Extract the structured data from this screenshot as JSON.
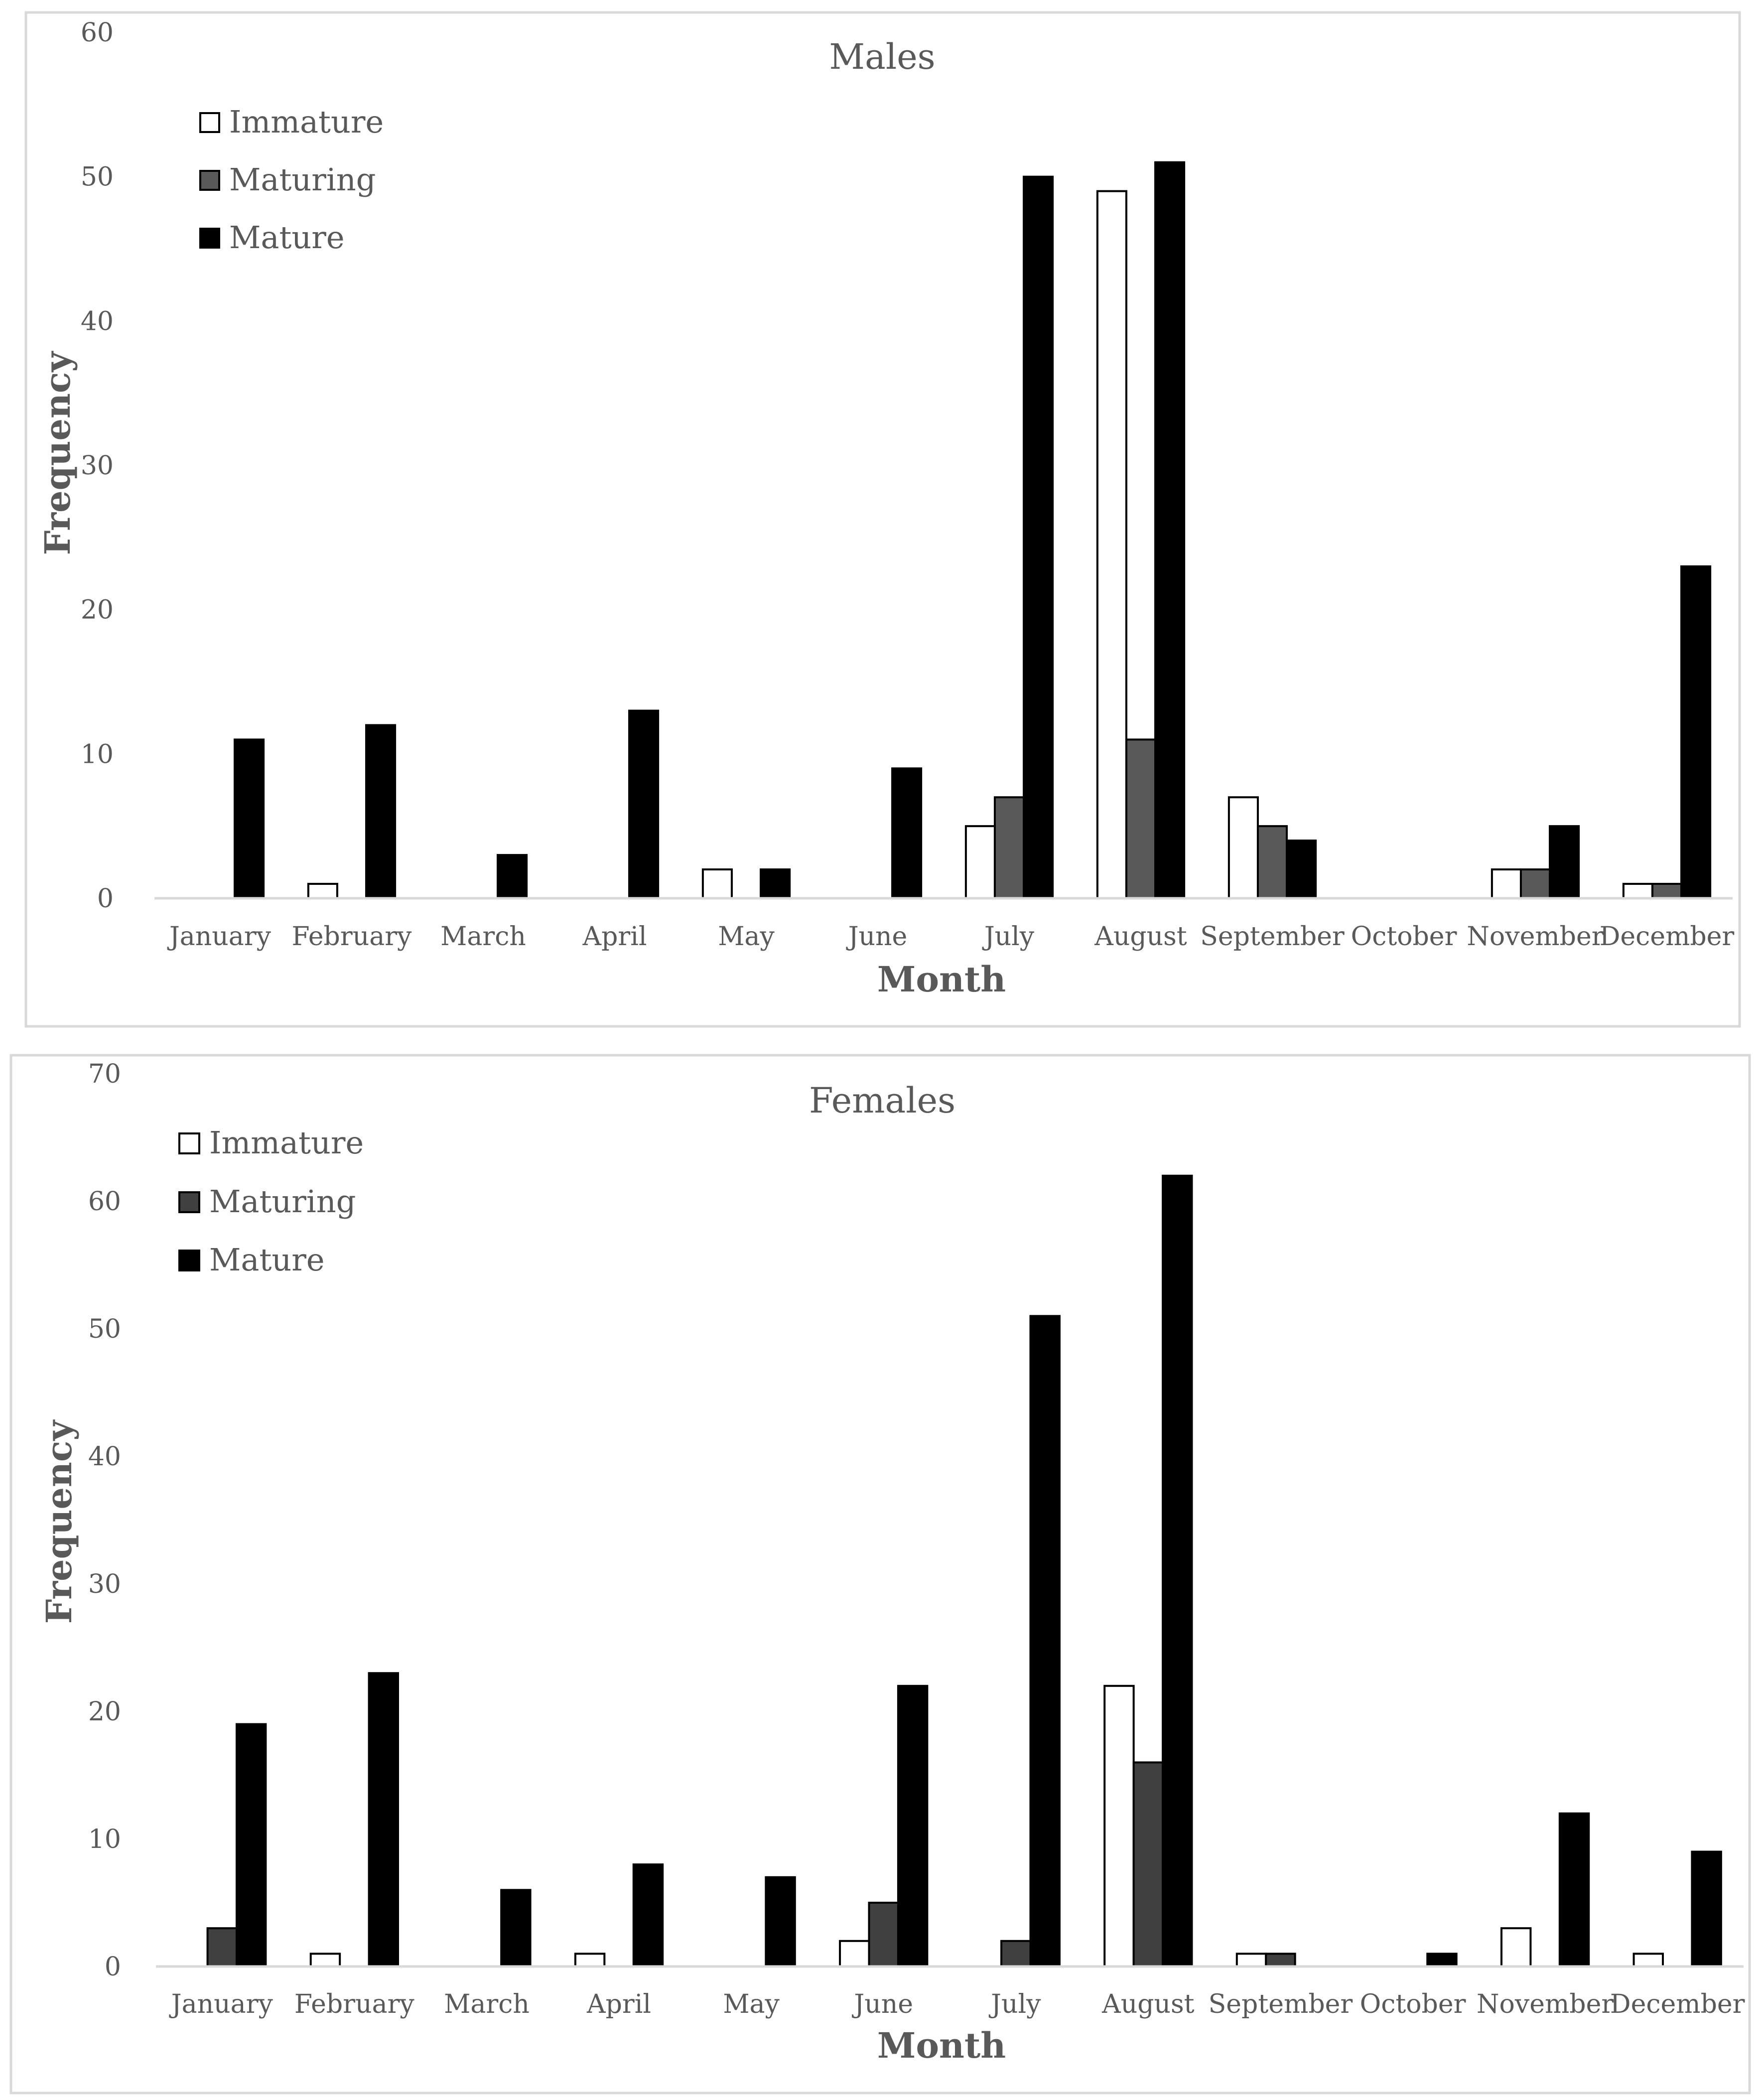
{
  "chart_data": [
    {
      "type": "bar",
      "title": "Males",
      "xlabel": "Month",
      "ylabel": "Frequency",
      "ylim": [
        0,
        60
      ],
      "yticks": [
        0,
        10,
        20,
        30,
        40,
        50,
        60
      ],
      "categories": [
        "January",
        "February",
        "March",
        "April",
        "May",
        "June",
        "July",
        "August",
        "September",
        "October",
        "November",
        "December"
      ],
      "series": [
        {
          "name": "Immature",
          "color": "#ffffff",
          "values": [
            0,
            1,
            0,
            0,
            2,
            0,
            5,
            49,
            7,
            0,
            2,
            1
          ]
        },
        {
          "name": "Maturing",
          "color": "#595959",
          "values": [
            0,
            0,
            0,
            0,
            0,
            0,
            7,
            11,
            5,
            0,
            2,
            1
          ]
        },
        {
          "name": "Mature",
          "color": "#000000",
          "values": [
            11,
            12,
            3,
            13,
            2,
            9,
            50,
            51,
            4,
            0,
            5,
            23
          ]
        }
      ],
      "legend": "top-left"
    },
    {
      "type": "bar",
      "title": "Females",
      "xlabel": "Month",
      "ylabel": "Frequency",
      "ylim": [
        0,
        70
      ],
      "yticks": [
        0,
        10,
        20,
        30,
        40,
        50,
        60,
        70
      ],
      "categories": [
        "January",
        "February",
        "March",
        "April",
        "May",
        "June",
        "July",
        "August",
        "September",
        "October",
        "November",
        "December"
      ],
      "series": [
        {
          "name": "Immature",
          "color": "#ffffff",
          "values": [
            0,
            1,
            0,
            1,
            0,
            2,
            0,
            22,
            1,
            0,
            3,
            1
          ]
        },
        {
          "name": "Maturing",
          "color": "#404040",
          "values": [
            3,
            0,
            0,
            0,
            0,
            5,
            2,
            16,
            1,
            0,
            0,
            0
          ]
        },
        {
          "name": "Mature",
          "color": "#000000",
          "values": [
            19,
            23,
            6,
            8,
            7,
            22,
            51,
            62,
            0,
            1,
            12,
            9
          ]
        }
      ],
      "legend": "top-left"
    }
  ]
}
